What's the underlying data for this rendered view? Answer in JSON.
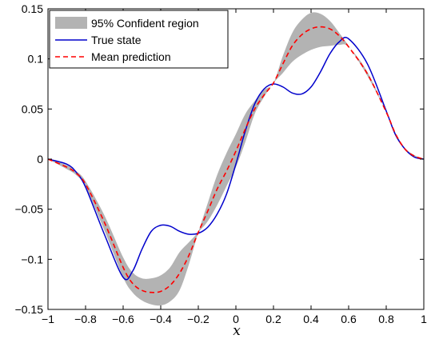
{
  "chart_data": {
    "type": "line",
    "title": "",
    "xlabel": "x",
    "ylabel": "",
    "xlim": [
      -1,
      1
    ],
    "ylim": [
      -0.15,
      0.15
    ],
    "xticks": [
      -1,
      -0.8,
      -0.6,
      -0.4,
      -0.2,
      0,
      0.2,
      0.4,
      0.6,
      0.8,
      1
    ],
    "yticks": [
      -0.15,
      -0.1,
      -0.05,
      0,
      0.05,
      0.1,
      0.15
    ],
    "xtick_labels": [
      "−1",
      "−0.8",
      "−0.6",
      "−0.4",
      "−0.2",
      "0",
      "0.2",
      "0.4",
      "0.6",
      "0.8",
      "1"
    ],
    "ytick_labels": [
      "−0.15",
      "−0.1",
      "−0.05",
      "0",
      "0.05",
      "0.1",
      "0.15"
    ],
    "grid": false,
    "legend_position": "top-left",
    "legend": [
      {
        "label": "95% Confident region",
        "style": "band",
        "color": "#b3b3b3"
      },
      {
        "label": "True state",
        "style": "solid",
        "color": "#0000cc"
      },
      {
        "label": "Mean prediction",
        "style": "dashed",
        "color": "#ff0000"
      }
    ],
    "x": [
      -1,
      -0.9,
      -0.85,
      -0.8,
      -0.7,
      -0.6,
      -0.55,
      -0.5,
      -0.45,
      -0.4,
      -0.35,
      -0.3,
      -0.25,
      -0.2,
      -0.15,
      -0.1,
      -0.05,
      0,
      0.05,
      0.1,
      0.15,
      0.2,
      0.25,
      0.3,
      0.35,
      0.4,
      0.45,
      0.5,
      0.55,
      0.6,
      0.7,
      0.8,
      0.85,
      0.9,
      0.95,
      1
    ],
    "series": [
      {
        "name": "True state",
        "color": "#0000cc",
        "values": [
          0,
          -0.005,
          -0.013,
          -0.028,
          -0.075,
          -0.118,
          -0.112,
          -0.09,
          -0.072,
          -0.066,
          -0.067,
          -0.072,
          -0.075,
          -0.074,
          -0.068,
          -0.055,
          -0.035,
          -0.005,
          0.028,
          0.055,
          0.07,
          0.075,
          0.072,
          0.066,
          0.065,
          0.072,
          0.087,
          0.105,
          0.117,
          0.12,
          0.095,
          0.048,
          0.024,
          0.01,
          0.002,
          0
        ]
      },
      {
        "name": "Mean prediction",
        "color": "#ff0000",
        "values": [
          0,
          -0.008,
          -0.014,
          -0.025,
          -0.063,
          -0.108,
          -0.124,
          -0.131,
          -0.133,
          -0.132,
          -0.126,
          -0.114,
          -0.096,
          -0.073,
          -0.052,
          -0.03,
          -0.012,
          0.008,
          0.03,
          0.05,
          0.064,
          0.076,
          0.095,
          0.113,
          0.124,
          0.13,
          0.132,
          0.13,
          0.123,
          0.112,
          0.085,
          0.047,
          0.025,
          0.01,
          0.003,
          0
        ]
      },
      {
        "name": "95% Confident region (lower)",
        "color": "#b3b3b3",
        "values": [
          0,
          -0.006,
          -0.012,
          -0.022,
          -0.056,
          -0.098,
          -0.113,
          -0.119,
          -0.119,
          -0.116,
          -0.108,
          -0.093,
          -0.083,
          -0.073,
          -0.062,
          -0.046,
          -0.027,
          -0.008,
          0.017,
          0.045,
          0.062,
          0.076,
          0.086,
          0.097,
          0.104,
          0.109,
          0.112,
          0.113,
          0.114,
          0.112,
          0.087,
          0.047,
          0.025,
          0.009,
          0.002,
          0
        ]
      },
      {
        "name": "95% Confident region (upper)",
        "color": "#b3b3b3",
        "values": [
          0,
          -0.01,
          -0.016,
          -0.028,
          -0.071,
          -0.118,
          -0.133,
          -0.141,
          -0.145,
          -0.146,
          -0.142,
          -0.131,
          -0.105,
          -0.073,
          -0.044,
          -0.016,
          0.006,
          0.025,
          0.045,
          0.058,
          0.069,
          0.076,
          0.103,
          0.126,
          0.139,
          0.146,
          0.145,
          0.138,
          0.126,
          0.113,
          0.083,
          0.047,
          0.026,
          0.011,
          0.004,
          0
        ]
      }
    ]
  }
}
